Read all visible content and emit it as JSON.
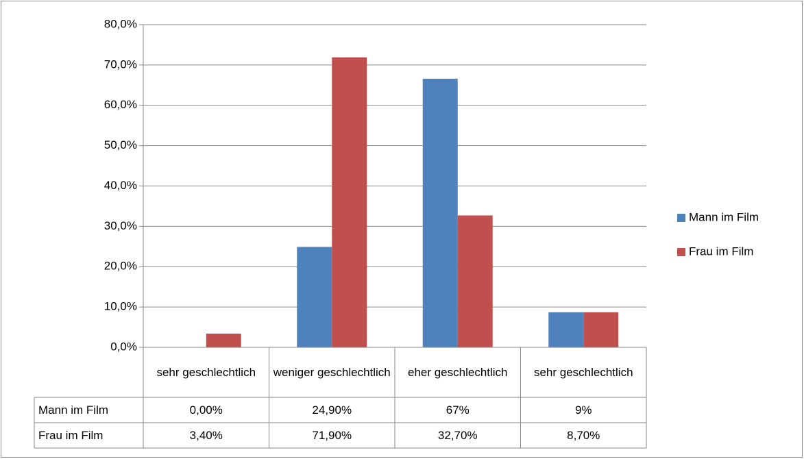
{
  "chart_data": {
    "type": "bar",
    "categories": [
      "sehr geschlechtlich",
      "weniger geschlechtlich",
      "eher geschlechtlich",
      "sehr geschlechtlich"
    ],
    "series": [
      {
        "name": "Mann im Film",
        "color": "#4f81bd",
        "values": [
          0,
          24.9,
          66.6,
          8.7
        ],
        "value_labels": [
          "0,00%",
          "24,90%",
          "67%",
          "9%"
        ]
      },
      {
        "name": "Frau im Film",
        "color": "#c0504d",
        "values": [
          3.4,
          71.9,
          32.7,
          8.7
        ],
        "value_labels": [
          "3,40%",
          "71,90%",
          "32,70%",
          "8,70%"
        ]
      }
    ],
    "ylim": [
      0,
      80
    ],
    "yticks": [
      {
        "value": 0,
        "label": "0,0%"
      },
      {
        "value": 10,
        "label": "10,0%"
      },
      {
        "value": 20,
        "label": "20,0%"
      },
      {
        "value": 30,
        "label": "30,0%"
      },
      {
        "value": 40,
        "label": "40,0%"
      },
      {
        "value": 50,
        "label": "50,0%"
      },
      {
        "value": 60,
        "label": "60,0%"
      },
      {
        "value": 70,
        "label": "70,0%"
      },
      {
        "value": 80,
        "label": "80,0%"
      }
    ],
    "grid": true,
    "legend": "right"
  }
}
